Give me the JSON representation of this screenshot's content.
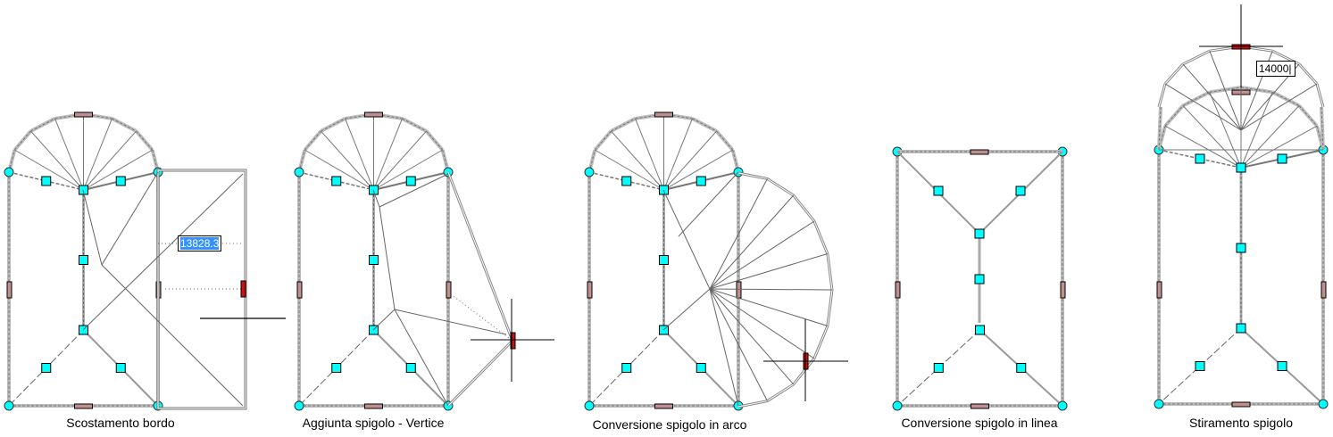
{
  "captions": [
    "Scostamento bordo",
    "Aggiunta spigolo - Vertice",
    "Conversione spigolo in arco",
    "Conversione spigolo in linea",
    "Stiramento spigolo"
  ],
  "dynamic_inputs": {
    "offset_value": "13828.3",
    "stretch_value": "14000"
  },
  "colors": {
    "grip": "#00ffff",
    "grip_selected": "#cc1111",
    "grip_midpoint": "#c09090",
    "edge": "#888888",
    "background": "#ffffff"
  }
}
